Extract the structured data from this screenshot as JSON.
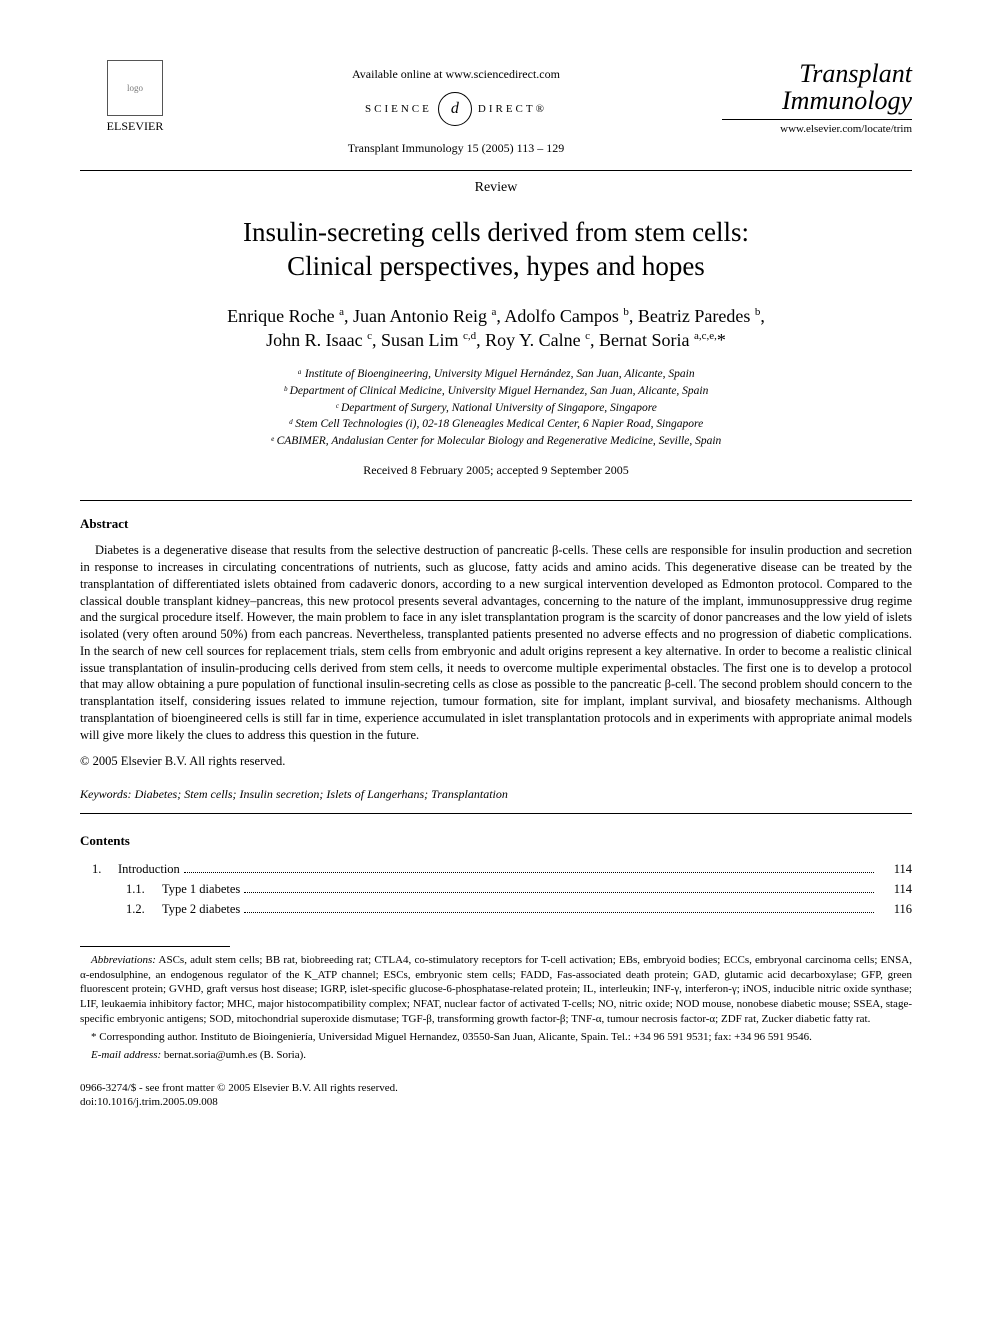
{
  "header": {
    "available_online": "Available online at www.sciencedirect.com",
    "sd_left": "SCIENCE",
    "sd_mid": "d",
    "sd_right": "DIRECT®",
    "elsevier": "ELSEVIER",
    "citation": "Transplant Immunology 15 (2005) 113 – 129",
    "journal_name_1": "Transplant",
    "journal_name_2": "Immunology",
    "journal_url": "www.elsevier.com/locate/trim",
    "doc_type": "Review"
  },
  "title_line1": "Insulin-secreting cells derived from stem cells:",
  "title_line2": "Clinical perspectives, hypes and hopes",
  "authors_html": "Enrique Roche <span class='sup'>a</span>, Juan Antonio Reig <span class='sup'>a</span>, Adolfo Campos <span class='sup'>b</span>, Beatriz Paredes <span class='sup'>b</span>,<br>John R. Isaac <span class='sup'>c</span>, Susan Lim <span class='sup'>c,d</span>, Roy Y. Calne <span class='sup'>c</span>, Bernat Soria <span class='sup'>a,c,e,</span>*",
  "affiliations": [
    "ᵃ Institute of Bioengineering, University Miguel Hernández, San Juan, Alicante, Spain",
    "ᵇ Department of Clinical Medicine, University Miguel Hernandez, San Juan, Alicante, Spain",
    "ᶜ Department of Surgery, National University of Singapore, Singapore",
    "ᵈ Stem Cell Technologies (i), 02-18 Gleneagles Medical Center, 6 Napier Road, Singapore",
    "ᵉ CABIMER, Andalusian Center for Molecular Biology and Regenerative Medicine, Seville, Spain"
  ],
  "dates": "Received 8 February 2005; accepted 9 September 2005",
  "abstract_heading": "Abstract",
  "abstract_text": "Diabetes is a degenerative disease that results from the selective destruction of pancreatic β-cells. These cells are responsible for insulin production and secretion in response to increases in circulating concentrations of nutrients, such as glucose, fatty acids and amino acids. This degenerative disease can be treated by the transplantation of differentiated islets obtained from cadaveric donors, according to a new surgical intervention developed as Edmonton protocol. Compared to the classical double transplant kidney–pancreas, this new protocol presents several advantages, concerning to the nature of the implant, immunosuppressive drug regime and the surgical procedure itself. However, the main problem to face in any islet transplantation program is the scarcity of donor pancreases and the low yield of islets isolated (very often around 50%) from each pancreas. Nevertheless, transplanted patients presented no adverse effects and no progression of diabetic complications. In the search of new cell sources for replacement trials, stem cells from embryonic and adult origins represent a key alternative. In order to become a realistic clinical issue transplantation of insulin-producing cells derived from stem cells, it needs to overcome multiple experimental obstacles. The first one is to develop a protocol that may allow obtaining a pure population of functional insulin-secreting cells as close as possible to the pancreatic β-cell. The second problem should concern to the transplantation itself, considering issues related to immune rejection, tumour formation, site for implant, implant survival, and biosafety mechanisms. Although transplantation of bioengineered cells is still far in time, experience accumulated in islet transplantation protocols and in experiments with appropriate animal models will give more likely the clues to address this question in the future.",
  "copyright_line": "© 2005 Elsevier B.V. All rights reserved.",
  "keywords_label": "Keywords:",
  "keywords_text": " Diabetes; Stem cells; Insulin secretion; Islets of Langerhans; Transplantation",
  "contents_heading": "Contents",
  "toc": [
    {
      "level": 1,
      "num": "1.",
      "label": "Introduction",
      "page": "114"
    },
    {
      "level": 2,
      "num": "1.1.",
      "label": "Type 1 diabetes",
      "page": "114"
    },
    {
      "level": 2,
      "num": "1.2.",
      "label": "Type 2 diabetes",
      "page": "116"
    }
  ],
  "footnotes": {
    "abbrev_label": "Abbreviations:",
    "abbrev_text": " ASCs, adult stem cells; BB rat, biobreeding rat; CTLA4, co-stimulatory receptors for T-cell activation; EBs, embryoid bodies; ECCs, embryonal carcinoma cells; ENSA, α-endosulphine, an endogenous regulator of the K_ATP channel; ESCs, embryonic stem cells; FADD, Fas-associated death protein; GAD, glutamic acid decarboxylase; GFP, green fluorescent protein; GVHD, graft versus host disease; IGRP, islet-specific glucose-6-phosphatase-related protein; IL, interleukin; INF-γ, interferon-γ; iNOS, inducible nitric oxide synthase; LIF, leukaemia inhibitory factor; MHC, major histocompatibility complex; NFAT, nuclear factor of activated T-cells; NO, nitric oxide; NOD mouse, nonobese diabetic mouse; SSEA, stage-specific embryonic antigens; SOD, mitochondrial superoxide dismutase; TGF-β, transforming growth factor-β; TNF-α, tumour necrosis factor-α; ZDF rat, Zucker diabetic fatty rat.",
    "corresponding": "* Corresponding author. Instituto de Bioingeniería, Universidad Miguel Hernandez, 03550-San Juan, Alicante, Spain. Tel.: +34 96 591 9531; fax: +34 96 591 9546.",
    "email_label": "E-mail address:",
    "email_value": " bernat.soria@umh.es (B. Soria)."
  },
  "bottom": {
    "line1": "0966-3274/$ - see front matter © 2005 Elsevier B.V. All rights reserved.",
    "line2": "doi:10.1016/j.trim.2005.09.008"
  }
}
